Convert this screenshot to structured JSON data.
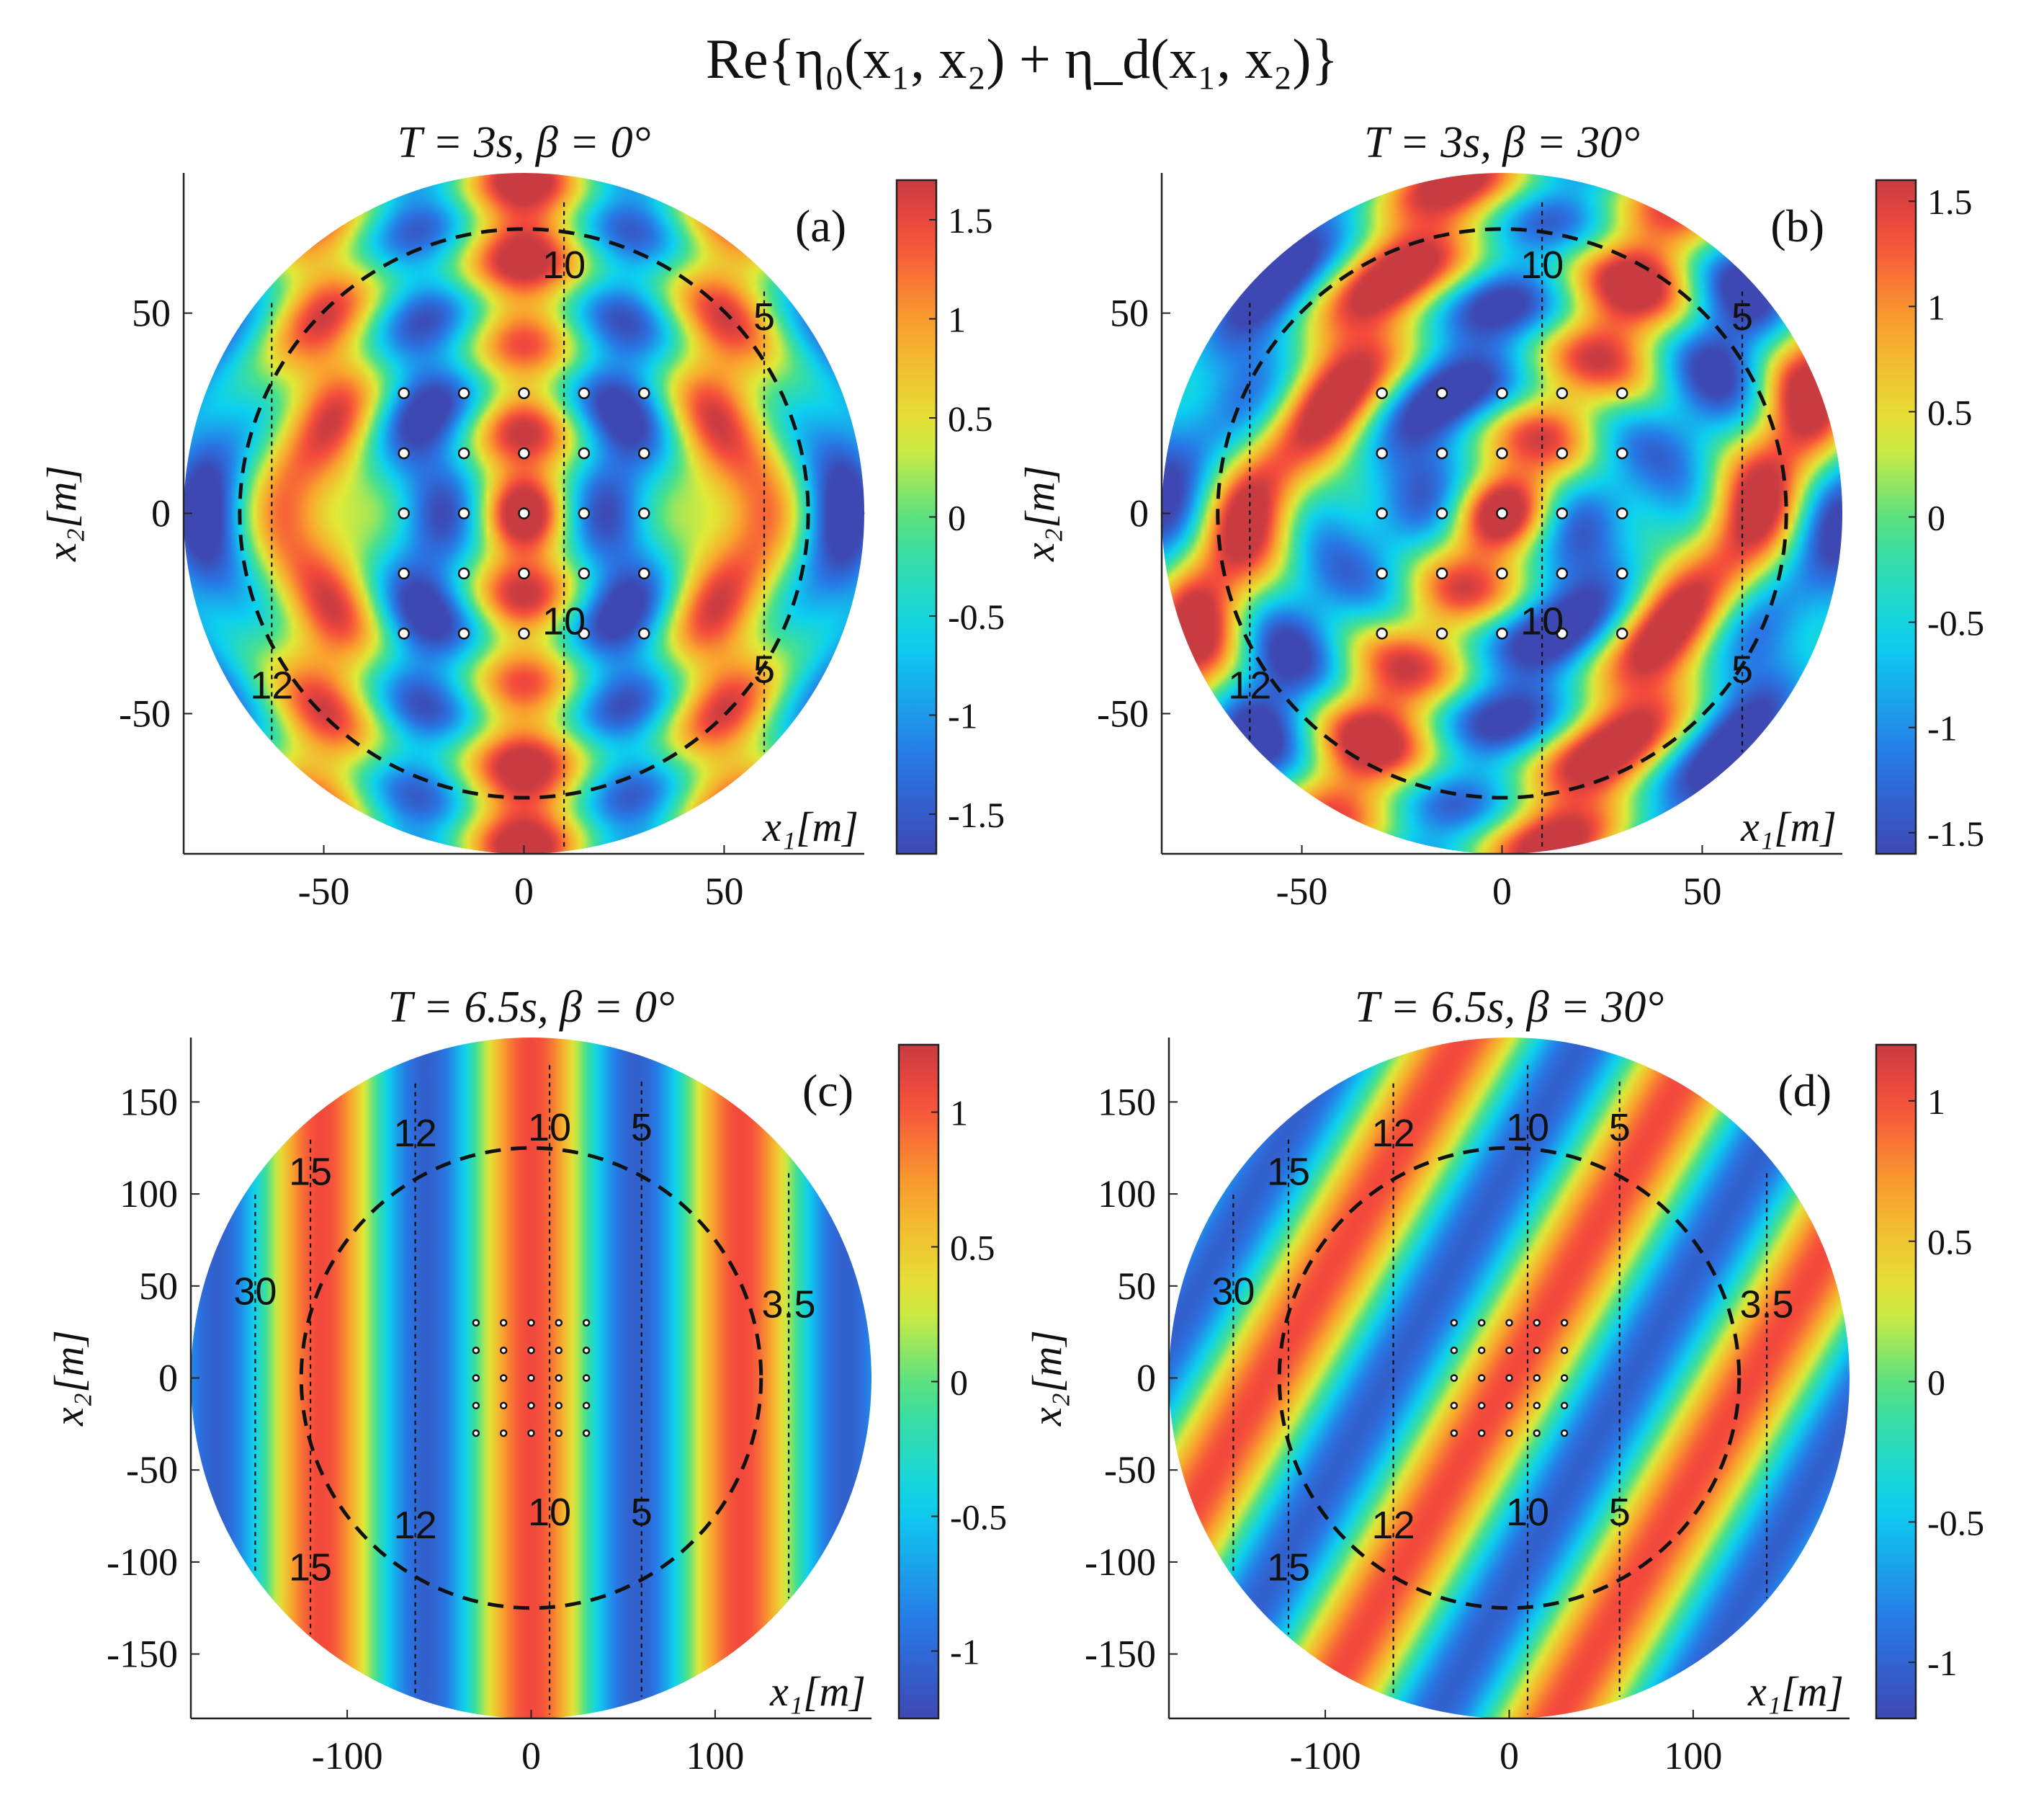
{
  "figure": {
    "title": "Re{η₀(x₁, x₂) + η_d(x₁, x₂)}"
  },
  "chart_data": [
    {
      "type": "heatmap",
      "panel": "(a)",
      "title": "T = 3s,  β = 0°",
      "xlabel": "x₁[m]",
      "ylabel": "x₂[m]",
      "period_s": 3,
      "beta_deg": 0,
      "domain_radius": 85,
      "xlim": [
        -85,
        85
      ],
      "ylim": [
        -85,
        85
      ],
      "xticks": [
        -50,
        0,
        50
      ],
      "yticks": [
        -50,
        0,
        50
      ],
      "colorbar": {
        "min": -1.7,
        "max": 1.7,
        "ticks": [
          -1.5,
          -1,
          -0.5,
          0,
          0.5,
          1,
          1.5
        ]
      },
      "dashed_circle_radius": 71,
      "cylinders": {
        "x": [
          -30,
          -15,
          0,
          15,
          30
        ],
        "y": [
          -30,
          -15,
          0,
          15,
          30
        ]
      },
      "depth_lines": [
        {
          "x": -63,
          "depth": "12",
          "labels_y": [
            -43
          ]
        },
        {
          "x": 10,
          "depth": "10",
          "labels_y": [
            62,
            -27
          ]
        },
        {
          "x": 60,
          "depth": "5",
          "labels_y": [
            49,
            -39
          ]
        },
        {
          "x": 85,
          "depth": "",
          "labels_y": []
        }
      ],
      "contour_labels": [
        {
          "text": "12",
          "x": -63,
          "y": -43
        },
        {
          "text": "10",
          "x": 10,
          "y": 62
        },
        {
          "text": "10",
          "x": 10,
          "y": -27
        },
        {
          "text": "5",
          "x": 60,
          "y": 49
        },
        {
          "text": "5",
          "x": 60,
          "y": -39
        }
      ]
    },
    {
      "type": "heatmap",
      "panel": "(b)",
      "title": "T = 3s,  β = 30°",
      "xlabel": "x₁[m]",
      "ylabel": "x₂[m]",
      "period_s": 3,
      "beta_deg": 30,
      "domain_radius": 85,
      "xlim": [
        -85,
        85
      ],
      "ylim": [
        -85,
        85
      ],
      "xticks": [
        -50,
        0,
        50
      ],
      "yticks": [
        -50,
        0,
        50
      ],
      "colorbar": {
        "min": -1.6,
        "max": 1.6,
        "ticks": [
          -1.5,
          -1,
          -0.5,
          0,
          0.5,
          1,
          1.5
        ]
      },
      "dashed_circle_radius": 71,
      "cylinders": {
        "x": [
          -30,
          -15,
          0,
          15,
          30
        ],
        "y": [
          -30,
          -15,
          0,
          15,
          30
        ]
      },
      "depth_lines": [
        {
          "x": -63,
          "depth": "12",
          "labels_y": [
            -43
          ]
        },
        {
          "x": 10,
          "depth": "10",
          "labels_y": [
            62,
            -27
          ]
        },
        {
          "x": 60,
          "depth": "5",
          "labels_y": [
            49,
            -39
          ]
        }
      ],
      "contour_labels": [
        {
          "text": "12",
          "x": -63,
          "y": -43
        },
        {
          "text": "10",
          "x": 10,
          "y": 62
        },
        {
          "text": "10",
          "x": 10,
          "y": -27
        },
        {
          "text": "5",
          "x": 60,
          "y": 49
        },
        {
          "text": "5",
          "x": 60,
          "y": -39
        }
      ]
    },
    {
      "type": "heatmap",
      "panel": "(c)",
      "title": "T = 6.5s,  β = 0°",
      "xlabel": "x₁[m]",
      "ylabel": "x₂[m]",
      "period_s": 6.5,
      "beta_deg": 0,
      "domain_radius": 185,
      "xlim": [
        -185,
        185
      ],
      "ylim": [
        -185,
        185
      ],
      "xticks": [
        -100,
        0,
        100
      ],
      "yticks": [
        -150,
        -100,
        -50,
        0,
        50,
        100,
        150
      ],
      "colorbar": {
        "min": -1.25,
        "max": 1.25,
        "ticks": [
          -1,
          -0.5,
          0,
          0.5,
          1
        ]
      },
      "dashed_circle_radius": 125,
      "cylinders": {
        "x": [
          -30,
          -15,
          0,
          15,
          30
        ],
        "y": [
          -30,
          -15,
          0,
          15,
          30
        ]
      },
      "depth_lines": [
        {
          "x": -150,
          "depth": "30",
          "labels_y": [
            47
          ]
        },
        {
          "x": -120,
          "depth": "15",
          "labels_y": [
            112,
            -103
          ]
        },
        {
          "x": -63,
          "depth": "12",
          "labels_y": [
            133,
            -80
          ]
        },
        {
          "x": 10,
          "depth": "10",
          "labels_y": [
            136,
            -73
          ]
        },
        {
          "x": 60,
          "depth": "5",
          "labels_y": [
            136,
            -73
          ]
        },
        {
          "x": 140,
          "depth": "3.5",
          "labels_y": [
            40
          ]
        }
      ],
      "contour_labels": [
        {
          "text": "30",
          "x": -150,
          "y": 47
        },
        {
          "text": "15",
          "x": -120,
          "y": 112
        },
        {
          "text": "15",
          "x": -120,
          "y": -103
        },
        {
          "text": "12",
          "x": -63,
          "y": 133
        },
        {
          "text": "12",
          "x": -63,
          "y": -80
        },
        {
          "text": "10",
          "x": 10,
          "y": 136
        },
        {
          "text": "10",
          "x": 10,
          "y": -73
        },
        {
          "text": "5",
          "x": 60,
          "y": 136
        },
        {
          "text": "5",
          "x": 60,
          "y": -73
        },
        {
          "text": "3.5",
          "x": 140,
          "y": 40
        }
      ]
    },
    {
      "type": "heatmap",
      "panel": "(d)",
      "title": "T = 6.5s,  β = 30°",
      "xlabel": "x₁[m]",
      "ylabel": "x₂[m]",
      "period_s": 6.5,
      "beta_deg": 30,
      "domain_radius": 185,
      "xlim": [
        -185,
        185
      ],
      "ylim": [
        -185,
        185
      ],
      "xticks": [
        -100,
        0,
        100
      ],
      "yticks": [
        -150,
        -100,
        -50,
        0,
        50,
        100,
        150
      ],
      "colorbar": {
        "min": -1.2,
        "max": 1.2,
        "ticks": [
          -1,
          -0.5,
          0,
          0.5,
          1
        ]
      },
      "dashed_circle_radius": 125,
      "cylinders": {
        "x": [
          -30,
          -15,
          0,
          15,
          30
        ],
        "y": [
          -30,
          -15,
          0,
          15,
          30
        ]
      },
      "depth_lines": [
        {
          "x": -150,
          "depth": "30",
          "labels_y": [
            47
          ]
        },
        {
          "x": -120,
          "depth": "15",
          "labels_y": [
            112,
            -103
          ]
        },
        {
          "x": -63,
          "depth": "12",
          "labels_y": [
            133,
            -80
          ]
        },
        {
          "x": 10,
          "depth": "10",
          "labels_y": [
            136,
            -73
          ]
        },
        {
          "x": 60,
          "depth": "5",
          "labels_y": [
            136,
            -73
          ]
        },
        {
          "x": 140,
          "depth": "3.5",
          "labels_y": [
            40
          ]
        }
      ],
      "contour_labels": [
        {
          "text": "30",
          "x": -150,
          "y": 47
        },
        {
          "text": "15",
          "x": -120,
          "y": 112
        },
        {
          "text": "15",
          "x": -120,
          "y": -103
        },
        {
          "text": "12",
          "x": -63,
          "y": 133
        },
        {
          "text": "12",
          "x": -63,
          "y": -80
        },
        {
          "text": "10",
          "x": 10,
          "y": 136
        },
        {
          "text": "10",
          "x": 10,
          "y": -73
        },
        {
          "text": "5",
          "x": 60,
          "y": 136
        },
        {
          "text": "5",
          "x": 60,
          "y": -73
        },
        {
          "text": "3.5",
          "x": 140,
          "y": 40
        }
      ]
    }
  ]
}
